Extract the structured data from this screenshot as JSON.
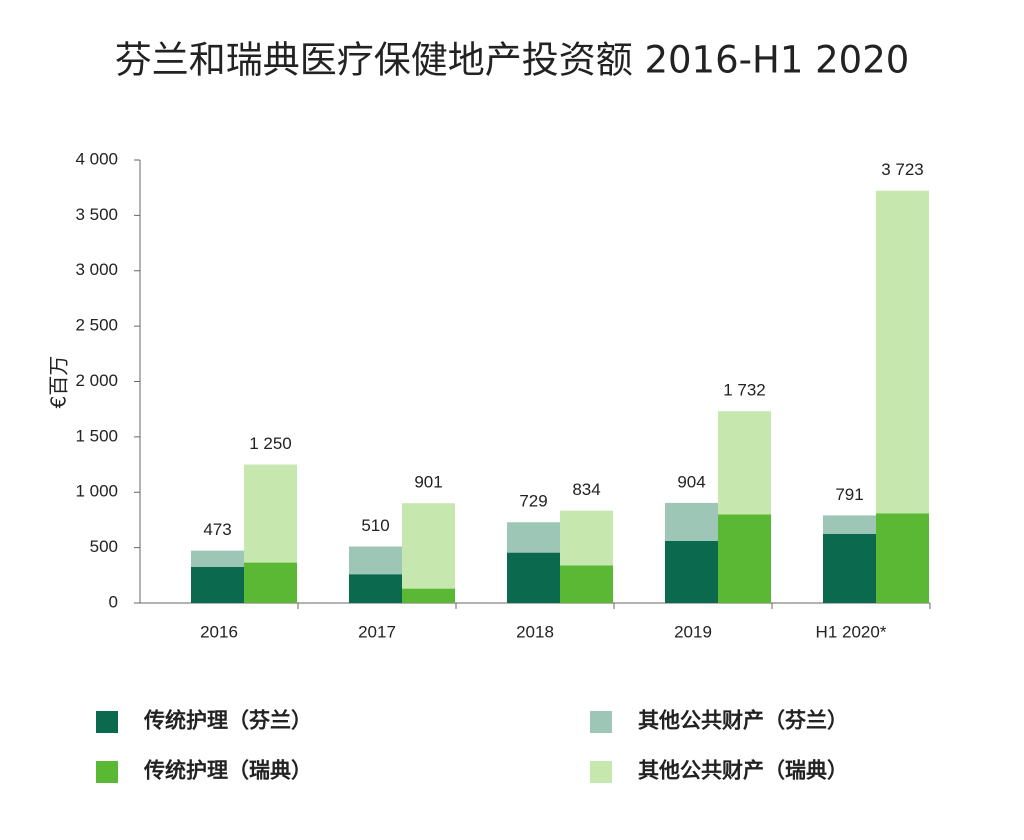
{
  "chart_data": {
    "type": "stacked_grouped_bar",
    "title": "芬兰和瑞典医疗保健地产投资额 2016-H1 2020",
    "y_label": "€百万",
    "categories": [
      "2016",
      "2017",
      "2018",
      "2019",
      "H1 2020*"
    ],
    "ylim": [
      0,
      4000
    ],
    "yticks": [
      0,
      500,
      {
        "value": 1000,
        "label": "1 000"
      },
      {
        "value": 1500,
        "label": "1 500"
      },
      {
        "value": 2000,
        "label": "2 000"
      },
      {
        "value": 2500,
        "label": "2 500"
      },
      {
        "value": 3000,
        "label": "3 000"
      },
      {
        "value": 3500,
        "label": "3 500"
      },
      {
        "value": 4000,
        "label": "4 000"
      }
    ],
    "grid": false,
    "stacks": [
      {
        "series": [
          {
            "name": "传统护理（芬兰）",
            "color": "#0b6a4e",
            "values": [
              325,
              260,
              455,
              560,
              625
            ]
          },
          {
            "name": "其他公共财产（芬兰）",
            "color": "#9dc6b6",
            "values": [
              148,
              250,
              274,
              344,
              166
            ]
          }
        ],
        "totals": [
          473,
          510,
          729,
          904,
          791
        ],
        "total_labels": [
          "473",
          "510",
          "729",
          "904",
          "791"
        ]
      },
      {
        "series": [
          {
            "name": "传统护理（瑞典）",
            "color": "#5ab834",
            "values": [
              365,
              130,
              340,
              800,
              810
            ]
          },
          {
            "name": "其他公共财产（瑞典）",
            "color": "#c6e7ad",
            "values": [
              885,
              771,
              494,
              932,
              2913
            ]
          }
        ],
        "totals": [
          1250,
          901,
          834,
          1732,
          3723
        ],
        "total_labels": [
          "1 250",
          "901",
          "834",
          "1 732",
          "3 723"
        ]
      }
    ]
  }
}
